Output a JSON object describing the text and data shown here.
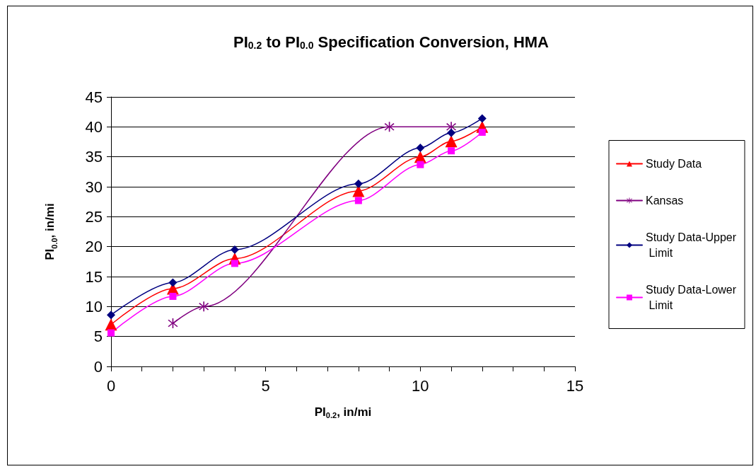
{
  "chart_data": {
    "type": "line",
    "title": "PI$_{0.2}$ to PI$_{0.0}$ Specification Conversion, HMA",
    "xlabel": "PI$_{0.2}$, in/mi",
    "ylabel": "PI$_{0.0}$, in/mi",
    "xlim": [
      0,
      15
    ],
    "xticks": [
      0,
      {
        "value": 1,
        "label": null
      },
      {
        "value": 2,
        "label": null
      },
      {
        "value": 3,
        "label": null
      },
      {
        "value": 4,
        "label": null
      },
      5,
      {
        "value": 6,
        "label": null
      },
      {
        "value": 7,
        "label": null
      },
      {
        "value": 8,
        "label": null
      },
      {
        "value": 9,
        "label": null
      },
      10,
      {
        "value": 11,
        "label": null
      },
      {
        "value": 12,
        "label": null
      },
      {
        "value": 13,
        "label": null
      },
      {
        "value": 14,
        "label": null
      },
      15
    ],
    "ylim": [
      0,
      45
    ],
    "yticks": [
      0,
      5,
      10,
      15,
      20,
      25,
      30,
      35,
      40,
      45
    ],
    "grid": "y",
    "legend": "right",
    "line_style": "solid",
    "series": [
      {
        "name": "Study Data",
        "color": "#ff0000",
        "marker": "triangle",
        "x": [
          0,
          2,
          4,
          8,
          10,
          11,
          12
        ],
        "values": [
          7,
          13,
          18,
          29.3,
          35,
          37.6,
          40
        ]
      },
      {
        "name": "Kansas",
        "color": "#800080",
        "marker": "cross",
        "x": [
          2,
          3,
          9,
          11
        ],
        "values": [
          7.2,
          10,
          40,
          40
        ]
      },
      {
        "name": "Study Data-Upper Limit",
        "color": "#000080",
        "marker": "diamond",
        "x": [
          0,
          2,
          4,
          8,
          10,
          11,
          12
        ],
        "values": [
          8.6,
          14,
          19.5,
          30.5,
          36.5,
          39,
          41.4
        ]
      },
      {
        "name": "Study Data-Lower Limit",
        "color": "#ff00ff",
        "marker": "square",
        "x": [
          0,
          2,
          4,
          8,
          10,
          11,
          12
        ],
        "values": [
          5.6,
          11.7,
          17.2,
          27.7,
          33.7,
          36,
          39.1
        ]
      }
    ]
  }
}
